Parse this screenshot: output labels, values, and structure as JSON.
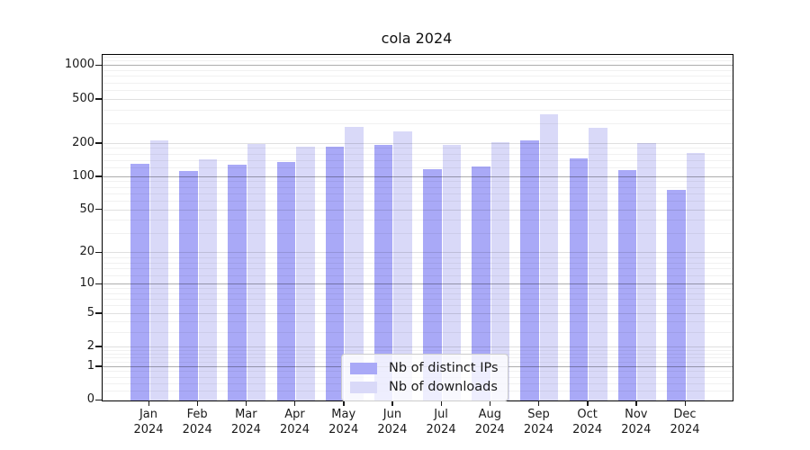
{
  "title": "cola 2024",
  "chart_data": {
    "type": "bar",
    "title": "cola 2024",
    "yscale": "symlog (log10 of 1+value)",
    "grid": true,
    "ylim": [
      0,
      1260
    ],
    "yticks": [
      1000,
      500,
      200,
      100,
      50,
      20,
      10,
      5,
      2,
      1,
      0
    ],
    "categories": [
      "Jan",
      "Feb",
      "Mar",
      "Apr",
      "May",
      "Jun",
      "Jul",
      "Aug",
      "Sep",
      "Oct",
      "Nov",
      "Dec"
    ],
    "year": "2024",
    "series": [
      {
        "name": "Nb of distinct IPs",
        "color": "#a9a9f7",
        "values": [
          133,
          114,
          130,
          137,
          188,
          195,
          117,
          124,
          214,
          147,
          115,
          76
        ]
      },
      {
        "name": "Nb of downloads",
        "color": "#d9d9f8",
        "values": [
          213,
          144,
          199,
          190,
          283,
          257,
          194,
          205,
          372,
          278,
          203,
          164
        ]
      }
    ],
    "legend_position": "lower center, inside axes"
  }
}
